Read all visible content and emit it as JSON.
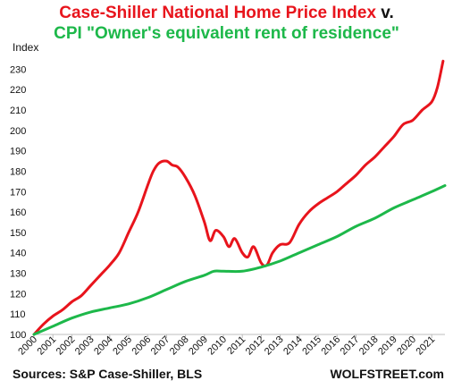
{
  "title": {
    "line1_red": "Case-Shiller National Home Price Index",
    "line1_black": " v.",
    "line2_green": "CPI \"Owner's equivalent rent of residence\""
  },
  "source": "Sources: S&P Case-Shiller, BLS",
  "brand": "WOLFSTREET.com",
  "chart_data": {
    "type": "line",
    "title": "Case-Shiller National Home Price Index v. CPI \"Owner's equivalent rent of residence\"",
    "xlabel": "",
    "ylabel": "Index",
    "xlim": [
      2000,
      2021.7
    ],
    "ylim": [
      100,
      235
    ],
    "yticks": [
      100,
      110,
      120,
      130,
      140,
      150,
      160,
      170,
      180,
      190,
      200,
      210,
      220,
      230
    ],
    "xticks": [
      "2000",
      "2001",
      "2002",
      "2003",
      "2004",
      "2005",
      "2006",
      "2007",
      "2008",
      "2009",
      "2010",
      "2011",
      "2012",
      "2013",
      "2014",
      "2015",
      "2016",
      "2017",
      "2018",
      "2019",
      "2020",
      "2021"
    ],
    "grid": false,
    "legend": "none",
    "series": [
      {
        "color": "#e8141c",
        "x": [
          2000.0,
          2000.5,
          2001.0,
          2001.5,
          2002.0,
          2002.5,
          2003.0,
          2003.5,
          2004.0,
          2004.5,
          2005.0,
          2005.5,
          2006.0,
          2006.3,
          2006.6,
          2007.0,
          2007.3,
          2007.6,
          2008.0,
          2008.5,
          2009.0,
          2009.3,
          2009.6,
          2010.0,
          2010.3,
          2010.6,
          2011.0,
          2011.3,
          2011.6,
          2012.0,
          2012.3,
          2012.6,
          2013.0,
          2013.5,
          2014.0,
          2014.5,
          2015.0,
          2015.5,
          2016.0,
          2016.5,
          2017.0,
          2017.5,
          2018.0,
          2018.5,
          2019.0,
          2019.5,
          2020.0,
          2020.5,
          2021.0,
          2021.3,
          2021.6
        ],
        "values": [
          100,
          105,
          109,
          112,
          116,
          119,
          124,
          129,
          134,
          140,
          150,
          160,
          173,
          180,
          184,
          185,
          183,
          182,
          177,
          168,
          155,
          146,
          151,
          148,
          143,
          147,
          140,
          138,
          143,
          135,
          134,
          140,
          144,
          145,
          154,
          160,
          164,
          167,
          170,
          174,
          178,
          183,
          187,
          192,
          197,
          203,
          205,
          210,
          214,
          221,
          234
        ]
      },
      {
        "color": "#1db84a",
        "x": [
          2000.0,
          2001.0,
          2002.0,
          2003.0,
          2004.0,
          2005.0,
          2006.0,
          2007.0,
          2008.0,
          2009.0,
          2009.5,
          2010.0,
          2011.0,
          2012.0,
          2013.0,
          2014.0,
          2015.0,
          2016.0,
          2017.0,
          2018.0,
          2019.0,
          2020.0,
          2021.0,
          2021.7
        ],
        "values": [
          100,
          104,
          108,
          111,
          113,
          115,
          118,
          122,
          126,
          129,
          131,
          131,
          131,
          133,
          136,
          140,
          144,
          148,
          153,
          157,
          162,
          166,
          170,
          173
        ]
      }
    ]
  }
}
